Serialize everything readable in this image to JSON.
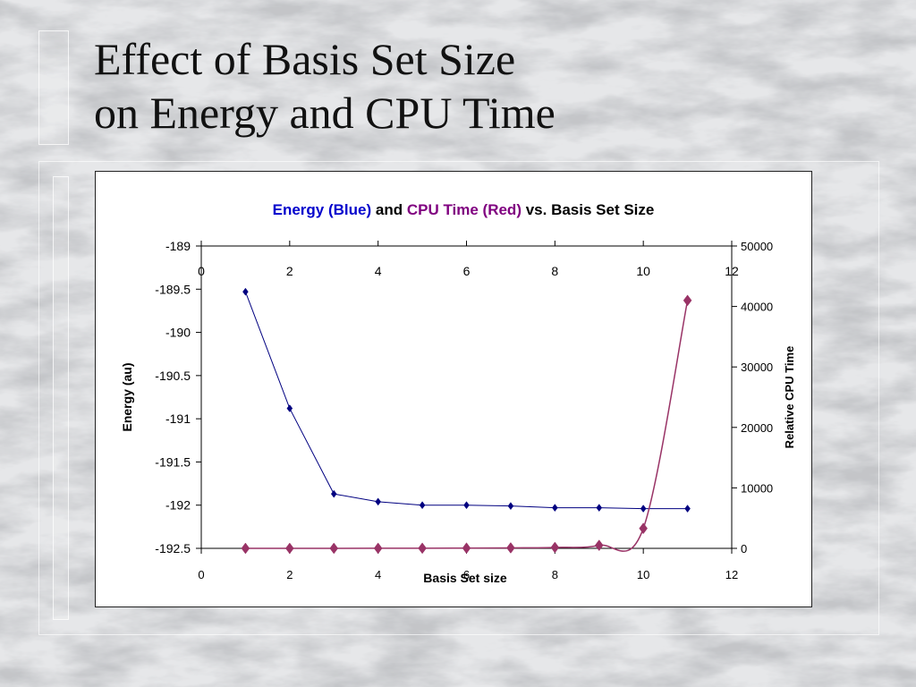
{
  "slide": {
    "title_line1": "Effect of Basis Set Size",
    "title_line2": "on Energy and CPU Time"
  },
  "colors": {
    "energy_series": "#000080",
    "cpu_series": "#993366",
    "title_blue": "#0000cc",
    "title_purple": "#800080",
    "background_marble": "#d9dadc"
  },
  "chart_data": {
    "type": "line",
    "title_parts": [
      {
        "text": "Energy (Blue)",
        "color": "#0000cc"
      },
      {
        "text": " and ",
        "color": "#000000"
      },
      {
        "text": "CPU Time (Red)",
        "color": "#800080"
      },
      {
        "text": " vs. Basis Set Size",
        "color": "#000000"
      }
    ],
    "xlabel": "Basis Set size",
    "ylabel": "Energy (au)",
    "y2label": "Relative CPU Time",
    "xlim": [
      0,
      12
    ],
    "xticks": [
      0,
      2,
      4,
      6,
      8,
      10,
      12
    ],
    "ylim": [
      -192.5,
      -189
    ],
    "yticks": [
      -189,
      -189.5,
      -190,
      -190.5,
      -191,
      -191.5,
      -192,
      -192.5
    ],
    "y2lim": [
      0,
      50000
    ],
    "y2ticks": [
      0,
      10000,
      20000,
      30000,
      40000,
      50000
    ],
    "grid": false,
    "series": [
      {
        "name": "Energy (Blue)",
        "axis": "left",
        "marker": "diamond",
        "color": "#000080",
        "x": [
          1,
          2,
          3,
          4,
          5,
          6,
          7,
          8,
          9,
          10,
          11
        ],
        "values": [
          -189.53,
          -190.88,
          -191.87,
          -191.96,
          -192.0,
          -192.0,
          -192.01,
          -192.03,
          -192.03,
          -192.04,
          -192.04
        ]
      },
      {
        "name": "CPU Time (Red)",
        "axis": "right",
        "marker": "diamond",
        "color": "#993366",
        "x": [
          1,
          2,
          3,
          4,
          5,
          6,
          7,
          8,
          9,
          10,
          11
        ],
        "values": [
          1,
          2,
          5,
          10,
          20,
          40,
          80,
          150,
          500,
          3300,
          41000
        ]
      }
    ]
  }
}
